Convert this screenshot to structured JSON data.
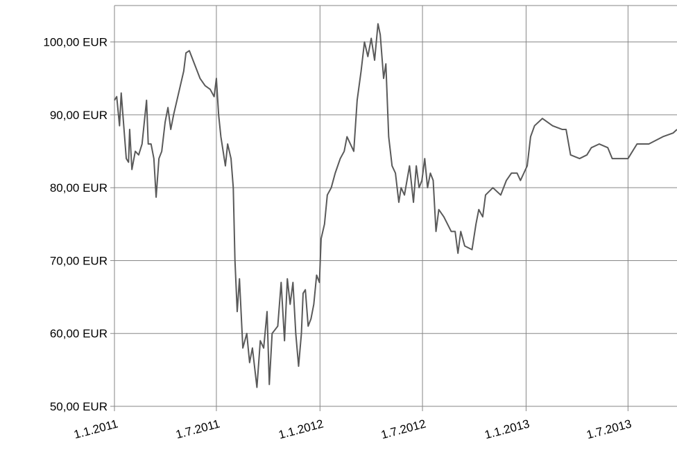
{
  "chart_data": {
    "type": "line",
    "x": [
      "2011-01-01",
      "2011-01-05",
      "2011-01-10",
      "2011-01-13",
      "2011-01-17",
      "2011-01-22",
      "2011-01-26",
      "2011-01-28",
      "2011-02-01",
      "2011-02-07",
      "2011-02-13",
      "2011-02-19",
      "2011-02-27",
      "2011-03-02",
      "2011-03-07",
      "2011-03-12",
      "2011-03-16",
      "2011-03-21",
      "2011-03-26",
      "2011-04-01",
      "2011-04-06",
      "2011-04-11",
      "2011-04-16",
      "2011-04-22",
      "2011-04-28",
      "2011-05-04",
      "2011-05-08",
      "2011-05-14",
      "2011-05-23",
      "2011-06-02",
      "2011-06-11",
      "2011-06-20",
      "2011-06-27",
      "2011-07-01",
      "2011-07-05",
      "2011-07-09",
      "2011-07-13",
      "2011-07-17",
      "2011-07-21",
      "2011-07-27",
      "2011-07-31",
      "2011-08-03",
      "2011-08-07",
      "2011-08-11",
      "2011-08-17",
      "2011-08-24",
      "2011-08-29",
      "2011-09-03",
      "2011-09-11",
      "2011-09-17",
      "2011-09-23",
      "2011-09-29",
      "2011-10-03",
      "2011-10-08",
      "2011-10-18",
      "2011-10-24",
      "2011-10-30",
      "2011-11-04",
      "2011-11-09",
      "2011-11-14",
      "2011-11-19",
      "2011-11-24",
      "2011-11-29",
      "2011-12-02",
      "2011-12-06",
      "2011-12-11",
      "2011-12-16",
      "2011-12-21",
      "2011-12-26",
      "2011-12-31",
      "2012-01-03",
      "2012-01-09",
      "2012-01-14",
      "2012-01-21",
      "2012-01-28",
      "2012-02-06",
      "2012-02-13",
      "2012-02-18",
      "2012-02-24",
      "2012-03-01",
      "2012-03-07",
      "2012-03-14",
      "2012-03-20",
      "2012-03-26",
      "2012-04-01",
      "2012-04-07",
      "2012-04-13",
      "2012-04-17",
      "2012-04-23",
      "2012-04-27",
      "2012-05-02",
      "2012-05-08",
      "2012-05-14",
      "2012-05-20",
      "2012-05-24",
      "2012-05-30",
      "2012-06-08",
      "2012-06-15",
      "2012-06-20",
      "2012-06-25",
      "2012-06-30",
      "2012-07-05",
      "2012-07-10",
      "2012-07-15",
      "2012-07-20",
      "2012-07-25",
      "2012-07-30",
      "2012-08-08",
      "2012-08-21",
      "2012-08-28",
      "2012-09-02",
      "2012-09-07",
      "2012-09-14",
      "2012-09-27",
      "2012-10-04",
      "2012-10-09",
      "2012-10-16",
      "2012-10-21",
      "2012-11-03",
      "2012-11-17",
      "2012-11-27",
      "2012-12-06",
      "2012-12-16",
      "2012-12-22",
      "2012-12-28",
      "2013-01-03",
      "2013-01-09",
      "2013-01-16",
      "2013-01-30",
      "2013-02-17",
      "2013-03-06",
      "2013-03-13",
      "2013-03-21",
      "2013-04-06",
      "2013-04-19",
      "2013-04-27",
      "2013-05-11",
      "2013-05-26",
      "2013-06-03",
      "2013-06-22",
      "2013-07-01",
      "2013-07-17",
      "2013-08-07",
      "2013-09-01",
      "2013-09-19",
      "2013-09-26"
    ],
    "values": [
      92,
      92.5,
      88.5,
      93,
      89,
      84,
      83.5,
      88,
      82.5,
      85,
      84.5,
      86,
      92,
      86,
      86,
      84,
      78.7,
      84,
      85,
      89,
      91,
      88,
      90,
      92,
      94,
      96,
      98.5,
      98.8,
      97,
      95,
      94,
      93.5,
      92.5,
      95,
      90,
      87,
      85,
      83,
      86,
      84,
      80,
      70,
      63,
      67.5,
      58,
      60,
      56,
      58,
      52.6,
      59,
      58,
      63,
      53,
      60,
      61,
      67,
      59,
      67.5,
      64,
      67,
      60,
      55.5,
      60,
      65.5,
      66,
      61,
      62,
      64,
      68,
      67,
      73,
      75,
      79,
      80,
      82,
      84,
      85,
      87,
      86,
      85,
      92,
      96,
      100,
      98,
      100.5,
      97.5,
      102.5,
      101,
      95,
      97,
      87,
      83,
      82,
      78,
      80,
      79,
      83,
      78,
      83,
      80,
      81,
      84,
      80,
      82,
      81,
      74,
      77,
      76,
      74,
      74,
      71,
      74,
      72,
      71.5,
      75,
      77,
      76,
      79,
      80,
      79,
      81,
      82,
      82,
      81,
      82,
      83,
      87,
      88.5,
      89.5,
      88.5,
      88,
      88,
      84.5,
      84,
      84.5,
      85.5,
      86,
      85.5,
      84,
      84,
      84,
      86,
      86,
      87,
      87.5,
      88
    ],
    "color": "#595959",
    "xlim": [
      "2011-01-01",
      "2013-09-26"
    ],
    "xticks": [
      {
        "value": "2011-01-01",
        "label": "1.1.2011"
      },
      {
        "value": "2011-07-01",
        "label": "1.7.2011"
      },
      {
        "value": "2012-01-01",
        "label": "1.1.2012"
      },
      {
        "value": "2012-07-01",
        "label": "1.7.2012"
      },
      {
        "value": "2013-01-01",
        "label": "1.1.2013"
      },
      {
        "value": "2013-07-01",
        "label": "1.7.2013"
      }
    ],
    "ylim": [
      50,
      105
    ],
    "yticks": [
      {
        "value": 50,
        "label": "50,00 EUR"
      },
      {
        "value": 60,
        "label": "60,00 EUR"
      },
      {
        "value": 70,
        "label": "70,00 EUR"
      },
      {
        "value": 80,
        "label": "80,00 EUR"
      },
      {
        "value": 90,
        "label": "90,00 EUR"
      },
      {
        "value": 100,
        "label": "100,00 EUR"
      }
    ],
    "grid": true
  }
}
